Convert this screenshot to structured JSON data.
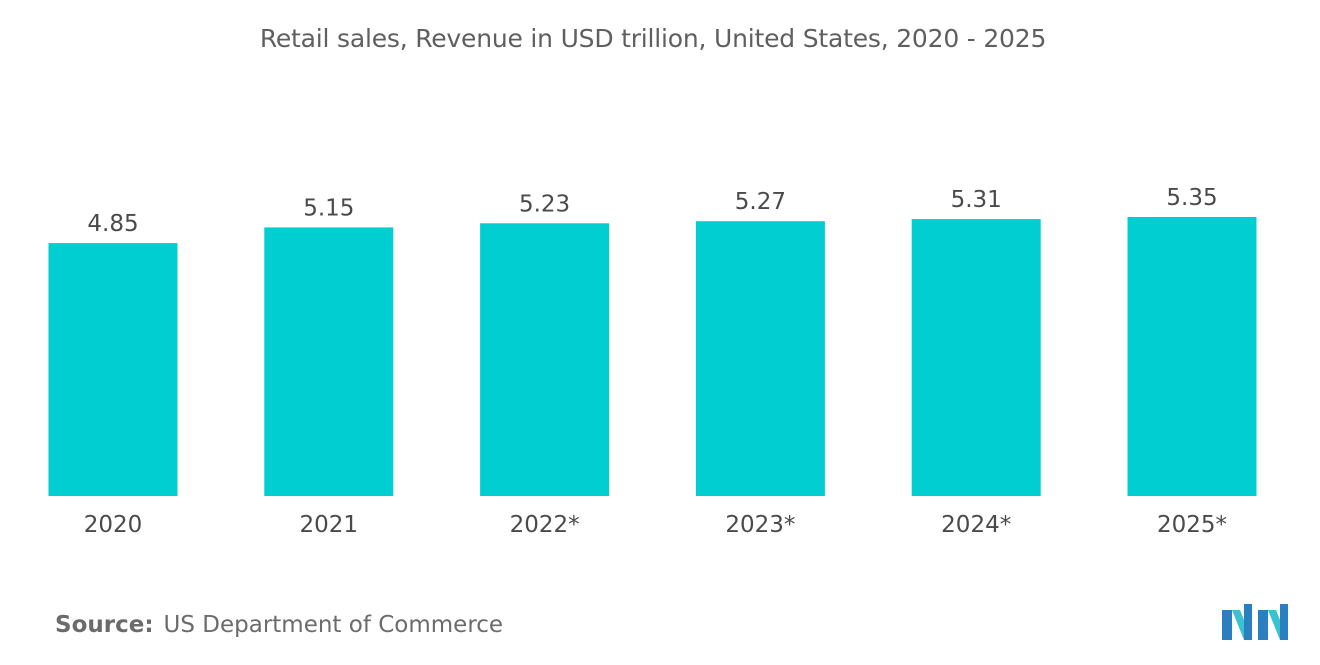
{
  "chart_data": {
    "type": "bar",
    "title": "Retail sales, Revenue in USD trillion, United States, 2020 - 2025",
    "categories": [
      "2020",
      "2021",
      "2022*",
      "2023*",
      "2024*",
      "2025*"
    ],
    "values": [
      4.85,
      5.15,
      5.23,
      5.27,
      5.31,
      5.35
    ],
    "value_labels": [
      "4.85",
      "5.15",
      "5.23",
      "5.27",
      "5.31",
      "5.35"
    ],
    "xlabel": "",
    "ylabel": "",
    "ylim": [
      0,
      5.35
    ],
    "grid": false,
    "legend": "none",
    "bar_color": "#00ced1"
  },
  "source": {
    "label": "Source:",
    "text": "US Department of Commerce"
  },
  "logo": {
    "icon": "mordor-intelligence-logo-icon",
    "colors": [
      "#2a7fc1",
      "#39c2d0"
    ]
  }
}
